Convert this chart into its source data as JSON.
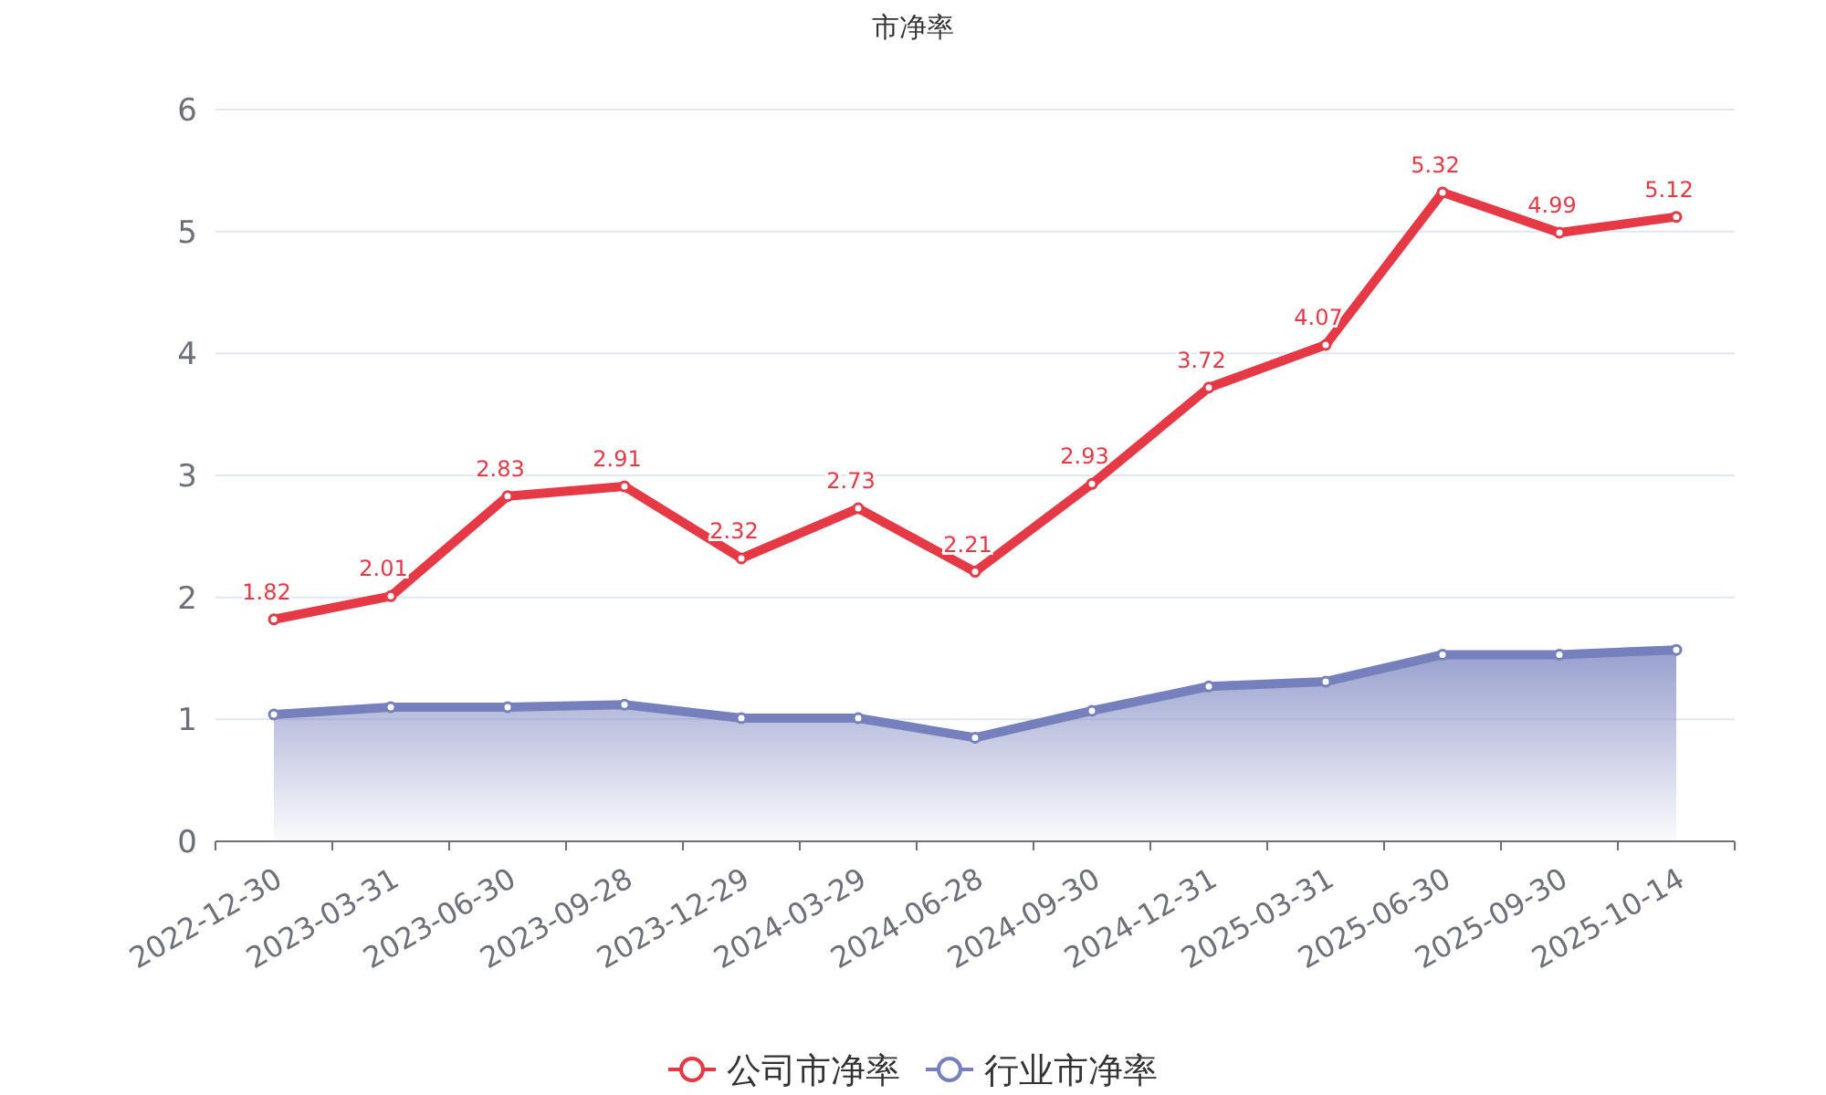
{
  "chart_data": {
    "type": "line",
    "title": "市净率",
    "categories": [
      "2022-12-30",
      "2023-03-31",
      "2023-06-30",
      "2023-09-28",
      "2023-12-29",
      "2024-03-29",
      "2024-06-28",
      "2024-09-30",
      "2024-12-31",
      "2025-03-31",
      "2025-06-30",
      "2025-09-30",
      "2025-10-14"
    ],
    "series": [
      {
        "name": "公司市净率",
        "type": "line",
        "color": "#e63946",
        "values": [
          1.82,
          2.01,
          2.83,
          2.91,
          2.32,
          2.73,
          2.21,
          2.93,
          3.72,
          4.07,
          5.32,
          4.99,
          5.12
        ],
        "value_labels": [
          "1.82",
          "2.01",
          "2.83",
          "2.91",
          "2.32",
          "2.73",
          "2.21",
          "2.93",
          "3.72",
          "4.07",
          "5.32",
          "4.99",
          "5.12"
        ]
      },
      {
        "name": "行业市净率",
        "type": "area",
        "color": "#7680bd",
        "values": [
          1.04,
          1.1,
          1.1,
          1.12,
          1.01,
          1.01,
          0.85,
          1.07,
          1.27,
          1.31,
          1.53,
          1.53,
          1.57
        ]
      }
    ],
    "ylim": [
      0,
      6
    ],
    "yticks": [
      0,
      1,
      2,
      3,
      4,
      5,
      6
    ],
    "grid": "y",
    "legend": "bottom",
    "marker": "circle",
    "line_style": "solid"
  }
}
